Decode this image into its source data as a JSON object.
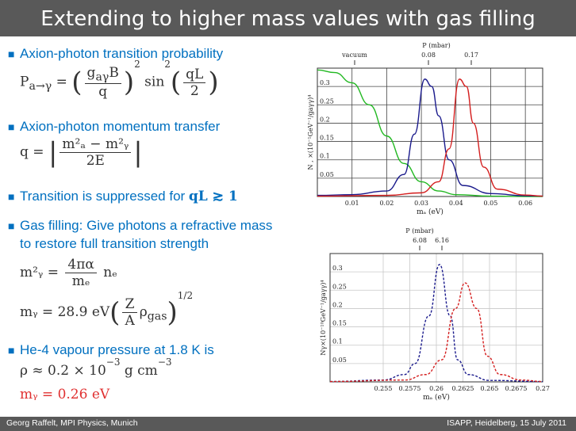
{
  "title": "Extending to higher mass values with gas filling",
  "bullets": [
    {
      "text": "Axion-photon transition probability"
    },
    {
      "text": "Axion-photon momentum transfer"
    },
    {
      "text_prefix": "Transition is suppressed for ",
      "text_math": "qL ≳ 1"
    },
    {
      "text": "Gas filling: Give photons a refractive mass"
    },
    {
      "text": "to restore full transition strength"
    },
    {
      "text": "He-4 vapour pressure at 1.8 K is"
    }
  ],
  "formulas": {
    "prob_lhs": "P",
    "prob_sub": "a→γ",
    "prob_eq": " = ",
    "prob_num": "g",
    "prob_num_sub": "aγ",
    "prob_num_tail": "B",
    "prob_den": "q",
    "prob_exp": "2",
    "prob_sin": " sin",
    "prob_sin_exp": "2",
    "prob_arg_num": "qL",
    "prob_arg_den": "2",
    "q_lhs": "q = ",
    "q_num": "m²ₐ − m²ᵧ",
    "q_den": "2E",
    "mgamma2_lhs": "m²ᵧ = ",
    "mgamma2_num": "4πα",
    "mgamma2_den": "mₑ",
    "mgamma2_tail": "nₑ",
    "mgamma_lhs": "mᵧ = 28.9 eV",
    "mgamma_num": "Z",
    "mgamma_den": "A",
    "mgamma_tail": "ρ",
    "mgamma_tail_sub": "gas",
    "mgamma_exp": "1/2",
    "rho_line": "ρ ≈ 0.2 × 10",
    "rho_exp": "−3",
    "rho_tail": " g cm",
    "rho_tail_exp": "−3",
    "result_line": "mᵧ = 0.26 eV"
  },
  "colors": {
    "title_bar": "#595959",
    "bullet": "#0070c0",
    "result": "#e03030",
    "green_curve": "#22b822",
    "blue_curve": "#1a1a8c",
    "red_curve": "#d41e1e"
  },
  "chart_data": [
    {
      "type": "line",
      "title": "",
      "top_axis_label": "P (mbar)",
      "top_ticks": [
        "vacuum",
        "0.08",
        "0.17"
      ],
      "xlabel": "mₐ (eV)",
      "ylabel": "N , ×(10⁻¹GeV⁻¹/gaγγ)⁴",
      "xlim": [
        0.0,
        0.065
      ],
      "ylim": [
        0.0,
        0.35
      ],
      "xticks": [
        "0.01",
        "0.02",
        "0.03",
        "0.04",
        "0.05",
        "0.06"
      ],
      "yticks": [
        "0.05",
        "0.1",
        "0.15",
        "0.2",
        "0.25",
        "0.3"
      ],
      "series": [
        {
          "name": "",
          "color": "green",
          "x": [
            0.0,
            0.005,
            0.01,
            0.015,
            0.02,
            0.025,
            0.03,
            0.035,
            0.04,
            0.05,
            0.06,
            0.065
          ],
          "y": [
            0.345,
            0.338,
            0.31,
            0.25,
            0.165,
            0.09,
            0.04,
            0.015,
            0.005,
            0.001,
            0.0,
            0.0
          ]
        },
        {
          "name": "",
          "color": "blue",
          "x": [
            0.0,
            0.01,
            0.02,
            0.025,
            0.028,
            0.031,
            0.033,
            0.035,
            0.038,
            0.042,
            0.05,
            0.06,
            0.065
          ],
          "y": [
            0.003,
            0.005,
            0.015,
            0.06,
            0.17,
            0.32,
            0.3,
            0.22,
            0.1,
            0.03,
            0.008,
            0.002,
            0.001
          ]
        },
        {
          "name": "",
          "color": "red",
          "x": [
            0.0,
            0.02,
            0.03,
            0.035,
            0.038,
            0.041,
            0.043,
            0.045,
            0.048,
            0.052,
            0.06,
            0.065
          ],
          "y": [
            0.001,
            0.003,
            0.01,
            0.04,
            0.13,
            0.32,
            0.3,
            0.2,
            0.08,
            0.02,
            0.004,
            0.001
          ]
        }
      ]
    },
    {
      "type": "line",
      "title": "",
      "top_axis_label": "P (mbar)",
      "top_ticks": [
        "6.08",
        "6.16"
      ],
      "xlabel": "mₐ (eV)",
      "ylabel": "Nγ×(10⁻¹⁰GeV⁻¹/gaγγ)⁴",
      "xlim": [
        0.25,
        0.27
      ],
      "ylim": [
        0.0,
        0.35
      ],
      "xticks": [
        "0.255",
        "0.2575",
        "0.26",
        "0.2625",
        "0.265",
        "0.2675",
        "0.27"
      ],
      "yticks": [
        "0.05",
        "0.1",
        "0.15",
        "0.2",
        "0.25",
        "0.3"
      ],
      "series": [
        {
          "name": "",
          "color": "blue",
          "style": "dashed",
          "x": [
            0.25,
            0.255,
            0.257,
            0.258,
            0.2593,
            0.2603,
            0.2613,
            0.262,
            0.263,
            0.265,
            0.27
          ],
          "y": [
            0.001,
            0.005,
            0.02,
            0.05,
            0.18,
            0.32,
            0.18,
            0.06,
            0.02,
            0.004,
            0.001
          ]
        },
        {
          "name": "",
          "color": "red",
          "style": "dashed",
          "x": [
            0.25,
            0.257,
            0.259,
            0.2605,
            0.2618,
            0.2627,
            0.2638,
            0.2648,
            0.266,
            0.268,
            0.27
          ],
          "y": [
            0.001,
            0.005,
            0.02,
            0.06,
            0.2,
            0.27,
            0.2,
            0.07,
            0.02,
            0.005,
            0.001
          ]
        }
      ]
    }
  ],
  "footer": {
    "left": "Georg Raffelt, MPI Physics, Munich",
    "right": "ISAPP, Heidelberg, 15 July 2011"
  }
}
